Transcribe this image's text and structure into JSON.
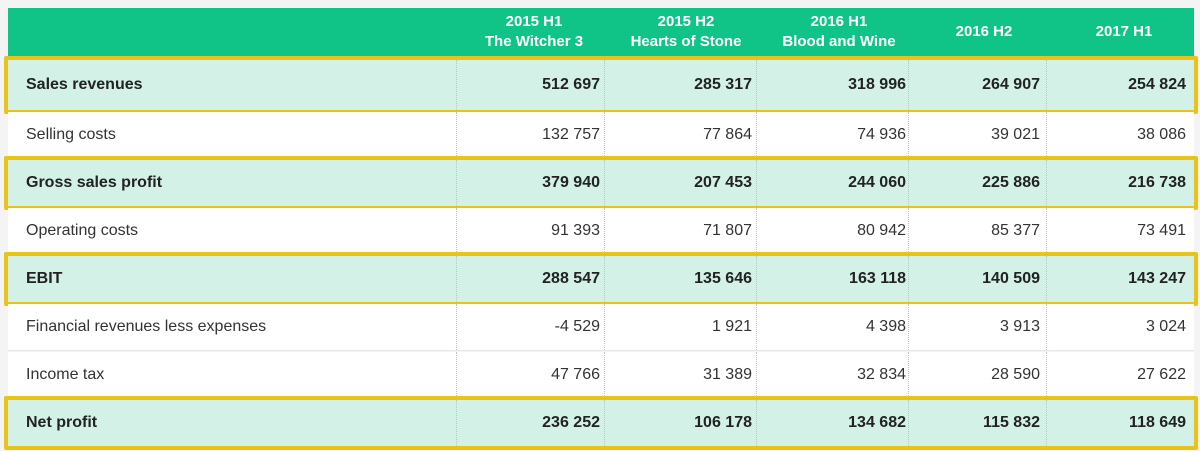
{
  "columns": [
    {
      "year": "2015 H1",
      "name": "The Witcher 3"
    },
    {
      "year": "2015 H2",
      "name": "Hearts of Stone"
    },
    {
      "year": "2016 H1",
      "name": "Blood and Wine"
    },
    {
      "year": "2016 H2",
      "name": ""
    },
    {
      "year": "2017 H1",
      "name": ""
    }
  ],
  "rows": [
    {
      "label": "Sales revenues",
      "highlight": true,
      "values": [
        "512 697",
        "285 317",
        "318 996",
        "264 907",
        "254 824"
      ]
    },
    {
      "label": "Selling costs",
      "highlight": false,
      "values": [
        "132 757",
        "77 864",
        "74 936",
        "39 021",
        "38 086"
      ]
    },
    {
      "label": "Gross sales profit",
      "highlight": true,
      "values": [
        "379 940",
        "207 453",
        "244 060",
        "225 886",
        "216 738"
      ]
    },
    {
      "label": "Operating costs",
      "highlight": false,
      "values": [
        "91 393",
        "71 807",
        "80 942",
        "85 377",
        "73 491"
      ]
    },
    {
      "label": "EBIT",
      "highlight": true,
      "values": [
        "288 547",
        "135 646",
        "163 118",
        "140 509",
        "143 247"
      ]
    },
    {
      "label": "Financial revenues less expenses",
      "highlight": false,
      "values": [
        "-4 529",
        "1 921",
        "4 398",
        "3 913",
        "3 024"
      ]
    },
    {
      "label": "Income tax",
      "highlight": false,
      "values": [
        "47 766",
        "31 389",
        "32 834",
        "28 590",
        "27 622"
      ]
    },
    {
      "label": "Net profit",
      "highlight": true,
      "values": [
        "236 252",
        "106 178",
        "134 682",
        "115 832",
        "118 649"
      ]
    }
  ],
  "colors": {
    "header": "#10c487",
    "highlight_fill": "#d3f1e7",
    "frame": "#e8c31a"
  }
}
